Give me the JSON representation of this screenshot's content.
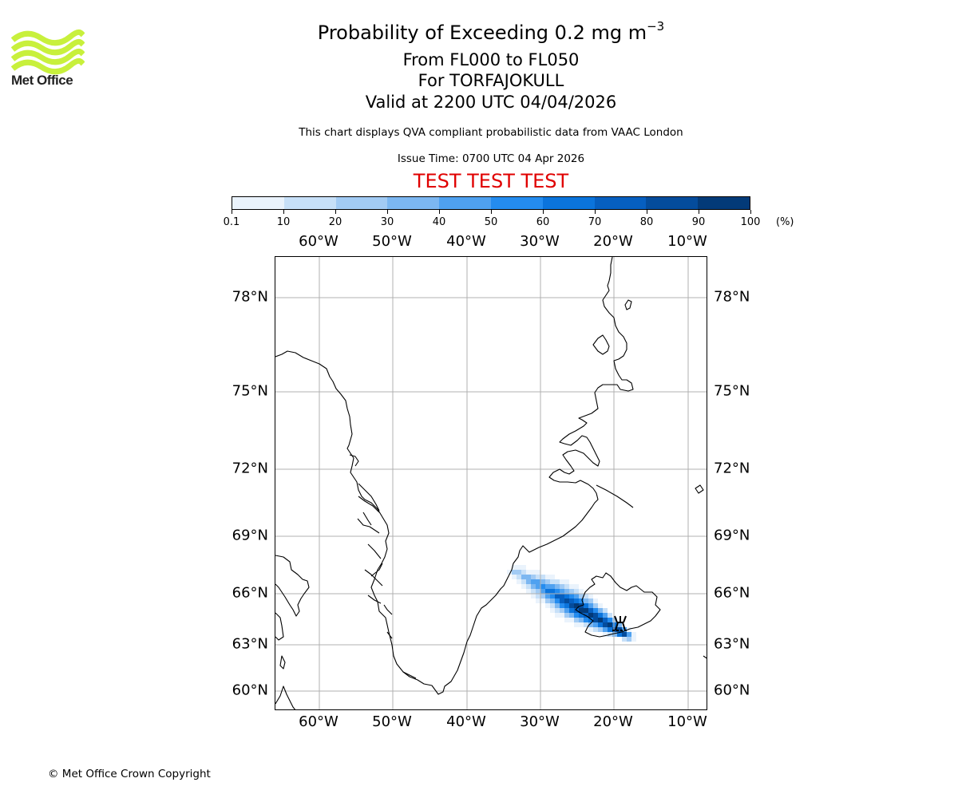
{
  "header": {
    "title_main": "Probability of Exceeding 0.2 mg m",
    "title_exponent": "−3",
    "flight_levels": "From FL000 to FL050",
    "volcano": "For TORFAJOKULL",
    "valid": "Valid at 2200 UTC 04/04/2026",
    "description": "This chart displays QVA compliant probabilistic data from VAAC London",
    "issue_time": "Issue Time: 0700 UTC 04 Apr 2026",
    "test_banner": "TEST TEST TEST"
  },
  "logo": {
    "text": "Met Office",
    "color": "#c8f03c"
  },
  "footer": {
    "copyright": "© Met Office Crown Copyright"
  },
  "colorbar": {
    "unit": "(%)",
    "ticks": [
      "0.1",
      "10",
      "20",
      "30",
      "40",
      "50",
      "60",
      "70",
      "80",
      "90",
      "100"
    ],
    "colors": [
      "#eaf3fc",
      "#c7e0f8",
      "#a2cbf4",
      "#7cb7f1",
      "#4fa1f0",
      "#248cef",
      "#0b74dc",
      "#065fc0",
      "#044c9c",
      "#033a78"
    ]
  },
  "map": {
    "lon_labels": [
      "60°W",
      "50°W",
      "40°W",
      "30°W",
      "20°W",
      "10°W"
    ],
    "lat_labels": [
      "78°N",
      "75°N",
      "72°N",
      "69°N",
      "66°N",
      "63°N",
      "60°N"
    ],
    "volcano_symbol": "volcano-icon"
  }
}
